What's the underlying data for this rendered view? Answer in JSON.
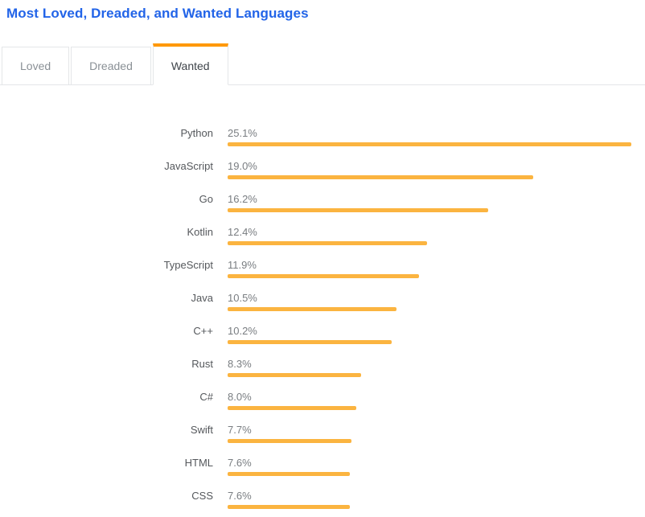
{
  "title": "Most Loved, Dreaded, and Wanted Languages",
  "tabs": [
    {
      "label": "Loved",
      "active": false
    },
    {
      "label": "Dreaded",
      "active": false
    },
    {
      "label": "Wanted",
      "active": true
    }
  ],
  "colors": {
    "title_blue": "#2264e8",
    "bar_orange": "#fbb440",
    "active_tab_indicator": "#ff9800",
    "tab_border": "#e4e6e8"
  },
  "chart_data": {
    "type": "bar",
    "orientation": "horizontal",
    "title": "Most Loved, Dreaded, and Wanted Languages",
    "active_tab": "Wanted",
    "categories": [
      "Python",
      "JavaScript",
      "Go",
      "Kotlin",
      "TypeScript",
      "Java",
      "C++",
      "Rust",
      "C#",
      "Swift",
      "HTML",
      "CSS"
    ],
    "values": [
      25.1,
      19.0,
      16.2,
      12.4,
      11.9,
      10.5,
      10.2,
      8.3,
      8.0,
      7.7,
      7.6,
      7.6
    ],
    "value_labels": [
      "25.1%",
      "19.0%",
      "16.2%",
      "12.4%",
      "11.9%",
      "10.5%",
      "10.2%",
      "8.3%",
      "8.0%",
      "7.7%",
      "7.6%",
      "7.6%"
    ],
    "max_value": 25.1,
    "xlim": [
      0,
      25.1
    ],
    "bar_color": "#fbb440",
    "grid": false,
    "legend": false,
    "value_label_position": "above-bar-left"
  }
}
